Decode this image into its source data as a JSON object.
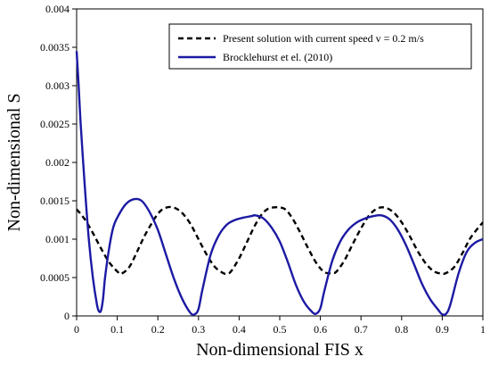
{
  "chart_data": {
    "type": "line",
    "title": "",
    "xlabel": "Non-dimensional FIS x",
    "ylabel": "Non-dimensional S",
    "xlim": [
      0,
      1
    ],
    "ylim": [
      0,
      0.004
    ],
    "x_ticks": [
      "0",
      "0.1",
      "0.2",
      "0.3",
      "0.4",
      "0.5",
      "0.6",
      "0.7",
      "0.8",
      "0.9",
      "1"
    ],
    "y_ticks": [
      "0",
      "0.0005",
      "0.001",
      "0.0015",
      "0.002",
      "0.0025",
      "0.003",
      "0.0035",
      "0.004"
    ],
    "grid": false,
    "legend_position": "top-right",
    "series": [
      {
        "name": "Present solution with current speed v = 0.2 m/s",
        "color": "#000000",
        "dash": "dashed",
        "x": [
          0,
          0.02,
          0.04,
          0.06,
          0.08,
          0.1,
          0.11,
          0.13,
          0.15,
          0.17,
          0.2,
          0.22,
          0.24,
          0.26,
          0.28,
          0.3,
          0.32,
          0.34,
          0.36,
          0.37,
          0.38,
          0.4,
          0.42,
          0.44,
          0.46,
          0.48,
          0.51,
          0.53,
          0.55,
          0.57,
          0.59,
          0.61,
          0.63,
          0.64,
          0.66,
          0.68,
          0.7,
          0.72,
          0.74,
          0.76,
          0.78,
          0.8,
          0.82,
          0.84,
          0.86,
          0.88,
          0.9,
          0.91,
          0.93,
          0.95,
          0.97,
          1
        ],
        "y": [
          0.00139,
          0.00126,
          0.00108,
          0.00088,
          0.0007,
          0.00058,
          0.00055,
          0.00064,
          0.00085,
          0.00107,
          0.00133,
          0.00141,
          0.00141,
          0.00134,
          0.0012,
          0.001,
          0.0008,
          0.00064,
          0.00056,
          0.00055,
          0.00058,
          0.00075,
          0.00097,
          0.00119,
          0.00135,
          0.00141,
          0.0014,
          0.00128,
          0.00109,
          0.00088,
          0.00069,
          0.00057,
          0.00056,
          0.00058,
          0.00073,
          0.00094,
          0.00114,
          0.00131,
          0.0014,
          0.00141,
          0.00135,
          0.00122,
          0.00104,
          0.00084,
          0.00068,
          0.00058,
          0.00055,
          0.00056,
          0.00064,
          0.00082,
          0.00102,
          0.00122
        ]
      },
      {
        "name": "Brocklehurst et el. (2010)",
        "color": "#1c1aa3",
        "dash": "solid",
        "x": [
          0,
          0.005,
          0.01,
          0.02,
          0.03,
          0.04,
          0.05,
          0.055,
          0.06,
          0.065,
          0.07,
          0.08,
          0.09,
          0.1,
          0.12,
          0.14,
          0.16,
          0.18,
          0.2,
          0.22,
          0.24,
          0.26,
          0.28,
          0.29,
          0.3,
          0.31,
          0.33,
          0.35,
          0.37,
          0.39,
          0.41,
          0.43,
          0.44,
          0.46,
          0.48,
          0.5,
          0.52,
          0.54,
          0.56,
          0.58,
          0.59,
          0.6,
          0.61,
          0.63,
          0.65,
          0.67,
          0.69,
          0.71,
          0.73,
          0.75,
          0.77,
          0.79,
          0.81,
          0.83,
          0.85,
          0.87,
          0.89,
          0.9,
          0.91,
          0.92,
          0.94,
          0.96,
          0.98,
          1
        ],
        "y": [
          0.00345,
          0.003,
          0.0025,
          0.0017,
          0.001,
          0.0005,
          0.00015,
          6e-05,
          7e-05,
          0.00022,
          0.0005,
          0.00088,
          0.00115,
          0.00128,
          0.00145,
          0.00152,
          0.0015,
          0.00135,
          0.00112,
          0.0008,
          0.00048,
          0.00022,
          4e-05,
          2e-05,
          9e-05,
          0.00035,
          0.0008,
          0.00105,
          0.00119,
          0.00125,
          0.00128,
          0.0013,
          0.00131,
          0.00127,
          0.00115,
          0.00097,
          0.0007,
          0.0004,
          0.00018,
          5e-05,
          3e-05,
          0.0001,
          0.00033,
          0.00073,
          0.00098,
          0.00113,
          0.00122,
          0.00127,
          0.0013,
          0.00131,
          0.00126,
          0.00113,
          0.00093,
          0.00068,
          0.00042,
          0.00022,
          8e-05,
          2e-05,
          3e-05,
          0.00015,
          0.00055,
          0.00083,
          0.00095,
          0.001
        ]
      }
    ]
  }
}
